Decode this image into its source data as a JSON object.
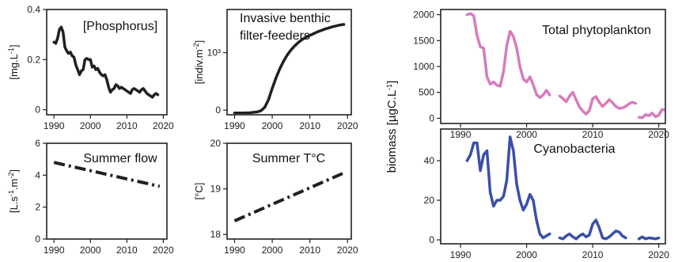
{
  "chart_data": [
    {
      "id": "phosphorus",
      "type": "line",
      "title": "[Phosphorus]",
      "ylabel": "[mg.L-1]",
      "color": "#231f20",
      "xlim": [
        1988,
        2021
      ],
      "ylim": [
        -0.02,
        0.4
      ],
      "xticks": [
        1990,
        2000,
        2010,
        2020
      ],
      "yticks": [
        0,
        0.2,
        0.4
      ],
      "ytick_labels": [
        "0",
        "0.2",
        "0.4"
      ],
      "series": [
        {
          "segments": [
            [
              [
                1990.0,
                0.27
              ],
              [
                1990.5,
                0.265
              ],
              [
                1991.0,
                0.285
              ],
              [
                1991.5,
                0.32
              ],
              [
                1992.0,
                0.33
              ],
              [
                1992.5,
                0.31
              ],
              [
                1993.0,
                0.25
              ],
              [
                1993.5,
                0.235
              ],
              [
                1994.0,
                0.225
              ],
              [
                1994.5,
                0.23
              ],
              [
                1995.0,
                0.215
              ],
              [
                1995.5,
                0.21
              ],
              [
                1996.0,
                0.18
              ],
              [
                1996.5,
                0.16
              ],
              [
                1997.0,
                0.14
              ],
              [
                1997.5,
                0.155
              ],
              [
                1998.0,
                0.16
              ],
              [
                1998.5,
                0.2
              ],
              [
                1999.0,
                0.205
              ],
              [
                1999.5,
                0.2
              ],
              [
                2000.0,
                0.2
              ],
              [
                2000.5,
                0.17
              ],
              [
                2001.0,
                0.175
              ],
              [
                2001.5,
                0.16
              ],
              [
                2002.0,
                0.165
              ],
              [
                2002.5,
                0.15
              ],
              [
                2003.0,
                0.14
              ],
              [
                2003.5,
                0.135
              ],
              [
                2004.0,
                0.14
              ],
              [
                2004.5,
                0.12
              ],
              [
                2005.0,
                0.09
              ],
              [
                2005.5,
                0.07
              ],
              [
                2006.0,
                0.08
              ],
              [
                2006.5,
                0.085
              ],
              [
                2007.0,
                0.1
              ],
              [
                2007.5,
                0.095
              ],
              [
                2008.0,
                0.085
              ],
              [
                2008.5,
                0.09
              ],
              [
                2009.0,
                0.085
              ],
              [
                2009.5,
                0.08
              ],
              [
                2010.0,
                0.075
              ],
              [
                2010.5,
                0.07
              ],
              [
                2011.0,
                0.065
              ],
              [
                2011.5,
                0.08
              ],
              [
                2012.0,
                0.085
              ],
              [
                2012.5,
                0.08
              ],
              [
                2013.0,
                0.075
              ],
              [
                2013.5,
                0.07
              ],
              [
                2014.0,
                0.08
              ],
              [
                2014.5,
                0.085
              ],
              [
                2015.0,
                0.075
              ],
              [
                2015.5,
                0.065
              ],
              [
                2016.0,
                0.06
              ],
              [
                2016.5,
                0.055
              ],
              [
                2017.0,
                0.05
              ],
              [
                2017.5,
                0.06
              ],
              [
                2018.0,
                0.065
              ],
              [
                2018.5,
                0.06
              ]
            ]
          ]
        }
      ]
    },
    {
      "id": "filter-feeders",
      "type": "line",
      "title": [
        "Invasive benthic",
        "filter-feeders"
      ],
      "ylabel": "[indiv.m-2]",
      "color": "#231f20",
      "xlim": [
        1988,
        2021
      ],
      "ylim": [
        -80,
        1750
      ],
      "xticks": [
        1990,
        2000,
        2010,
        2020
      ],
      "yticks": [
        0,
        1000
      ],
      "ytick_labels": [
        "0",
        "10³"
      ],
      "series": [
        {
          "segments": [
            [
              [
                1990,
                -50
              ],
              [
                1992,
                -50
              ],
              [
                1994,
                -45
              ],
              [
                1996,
                -30
              ],
              [
                1997,
                -10
              ],
              [
                1998,
                50
              ],
              [
                1999,
                180
              ],
              [
                2000,
                380
              ],
              [
                2001,
                560
              ],
              [
                2002,
                720
              ],
              [
                2003,
                850
              ],
              [
                2004,
                960
              ],
              [
                2005,
                1050
              ],
              [
                2006,
                1120
              ],
              [
                2007,
                1180
              ],
              [
                2008,
                1230
              ],
              [
                2009,
                1270
              ],
              [
                2010,
                1300
              ],
              [
                2011,
                1330
              ],
              [
                2012,
                1360
              ],
              [
                2013,
                1385
              ],
              [
                2014,
                1410
              ],
              [
                2015,
                1430
              ],
              [
                2016,
                1450
              ],
              [
                2017,
                1465
              ],
              [
                2018,
                1480
              ],
              [
                2019,
                1490
              ]
            ]
          ]
        }
      ]
    },
    {
      "id": "summer-flow",
      "type": "line",
      "title": "Summer flow",
      "ylabel": "[L.s-1.m-2]",
      "color": "#231f20",
      "dashed": true,
      "xlim": [
        1988,
        2021
      ],
      "ylim": [
        0,
        6
      ],
      "xticks": [
        1990,
        2000,
        2010,
        2020
      ],
      "yticks": [
        0,
        2,
        4,
        6
      ],
      "ytick_labels": [
        "0",
        "2",
        "4",
        "6"
      ],
      "series": [
        {
          "segments": [
            [
              [
                1990,
                4.8
              ],
              [
                2019,
                3.3
              ]
            ]
          ]
        }
      ]
    },
    {
      "id": "summer-temperature",
      "type": "line",
      "title": "Summer T°C",
      "ylabel": "[°C]",
      "color": "#231f20",
      "dashed": true,
      "xlim": [
        1988,
        2021
      ],
      "ylim": [
        17.9,
        20
      ],
      "xticks": [
        1990,
        2000,
        2010,
        2020
      ],
      "yticks": [
        18,
        19,
        20
      ],
      "ytick_labels": [
        "18",
        "19",
        "20"
      ],
      "series": [
        {
          "segments": [
            [
              [
                1990,
                18.3
              ],
              [
                2019,
                19.35
              ]
            ]
          ]
        }
      ]
    },
    {
      "id": "total-phytoplankton",
      "type": "line",
      "title": "Total phytoplankton",
      "ylabel": "",
      "color": "#d87bbd",
      "xlim": [
        1987,
        2021
      ],
      "ylim": [
        -100,
        2100
      ],
      "xticks": [
        1990,
        2000,
        2010,
        2020
      ],
      "yticks": [
        0,
        500,
        1000,
        1500,
        2000
      ],
      "ytick_labels": [
        "0",
        "500",
        "1000",
        "1500",
        "2000"
      ],
      "series": [
        {
          "segments": [
            [
              [
                1991.0,
                2000
              ],
              [
                1991.5,
                2020
              ],
              [
                1992.0,
                1980
              ],
              [
                1992.5,
                1600
              ],
              [
                1993.0,
                1380
              ],
              [
                1993.5,
                1350
              ],
              [
                1994.0,
                800
              ],
              [
                1994.5,
                660
              ],
              [
                1995.0,
                700
              ],
              [
                1995.5,
                640
              ],
              [
                1996.0,
                620
              ],
              [
                1996.5,
                900
              ],
              [
                1997.0,
                1400
              ],
              [
                1997.5,
                1680
              ],
              [
                1998.0,
                1580
              ],
              [
                1998.5,
                1350
              ],
              [
                1999.0,
                1000
              ],
              [
                1999.5,
                760
              ],
              [
                2000.0,
                700
              ],
              [
                2000.5,
                800
              ],
              [
                2001.0,
                650
              ],
              [
                2001.5,
                460
              ],
              [
                2002.0,
                400
              ],
              [
                2002.5,
                450
              ],
              [
                2003.0,
                540
              ],
              [
                2003.5,
                450
              ]
            ],
            [
              [
                2005.0,
                430
              ],
              [
                2005.5,
                380
              ],
              [
                2006.0,
                320
              ],
              [
                2006.5,
                430
              ],
              [
                2007.0,
                500
              ],
              [
                2007.5,
                360
              ],
              [
                2008.0,
                220
              ],
              [
                2008.5,
                140
              ],
              [
                2009.0,
                80
              ],
              [
                2009.5,
                150
              ],
              [
                2010.0,
                380
              ],
              [
                2010.5,
                420
              ],
              [
                2011.0,
                310
              ],
              [
                2011.5,
                230
              ],
              [
                2012.0,
                290
              ],
              [
                2012.5,
                360
              ],
              [
                2013.0,
                300
              ],
              [
                2013.5,
                230
              ],
              [
                2014.0,
                190
              ],
              [
                2014.5,
                200
              ],
              [
                2015.0,
                230
              ],
              [
                2015.5,
                280
              ],
              [
                2016.0,
                310
              ],
              [
                2016.5,
                290
              ]
            ],
            [
              [
                2017.0,
                20
              ],
              [
                2017.5,
                10
              ],
              [
                2018.0,
                70
              ],
              [
                2018.5,
                50
              ],
              [
                2019.0,
                100
              ],
              [
                2019.5,
                30
              ],
              [
                2020.0,
                60
              ],
              [
                2020.5,
                170
              ],
              [
                2021.0,
                160
              ],
              [
                2021.5,
                30
              ],
              [
                2022.0,
                10
              ]
            ]
          ]
        }
      ]
    },
    {
      "id": "cyanobacteria",
      "type": "line",
      "title": "Cyanobacteria",
      "ylabel": "",
      "color": "#3a4fa8",
      "xlim": [
        1987,
        2021
      ],
      "ylim": [
        -2,
        56
      ],
      "xticks": [
        1990,
        2000,
        2010,
        2020
      ],
      "yticks": [
        0,
        20,
        40
      ],
      "ytick_labels": [
        "0",
        "20",
        "40"
      ],
      "series": [
        {
          "segments": [
            [
              [
                1991.0,
                40
              ],
              [
                1991.5,
                43
              ],
              [
                1992.0,
                49
              ],
              [
                1992.5,
                49
              ],
              [
                1993.0,
                35
              ],
              [
                1993.5,
                43
              ],
              [
                1994.0,
                45
              ],
              [
                1994.5,
                24
              ],
              [
                1995.0,
                17
              ],
              [
                1995.5,
                20
              ],
              [
                1996.0,
                20
              ],
              [
                1996.5,
                22
              ],
              [
                1997.0,
                30
              ],
              [
                1997.5,
                52
              ],
              [
                1998.0,
                45
              ],
              [
                1998.5,
                28
              ],
              [
                1999.0,
                20
              ],
              [
                1999.5,
                15
              ],
              [
                2000.0,
                18
              ],
              [
                2000.5,
                23
              ],
              [
                2001.0,
                20
              ],
              [
                2001.5,
                10
              ],
              [
                2002.0,
                3
              ],
              [
                2002.5,
                1
              ],
              [
                2003.0,
                2
              ],
              [
                2003.5,
                3
              ]
            ],
            [
              [
                2005.0,
                1
              ],
              [
                2005.5,
                0.5
              ],
              [
                2006.0,
                2
              ],
              [
                2006.5,
                3
              ],
              [
                2007.0,
                1.5
              ],
              [
                2007.5,
                0.5
              ],
              [
                2008.0,
                2
              ],
              [
                2008.5,
                3
              ],
              [
                2009.0,
                1.5
              ],
              [
                2009.5,
                2.5
              ],
              [
                2010.0,
                8
              ],
              [
                2010.5,
                10
              ],
              [
                2011.0,
                6
              ],
              [
                2011.5,
                1
              ],
              [
                2012.0,
                0.5
              ],
              [
                2012.5,
                1.5
              ],
              [
                2013.0,
                3
              ],
              [
                2013.5,
                4.5
              ],
              [
                2014.0,
                4
              ],
              [
                2014.5,
                2
              ],
              [
                2015.0,
                1
              ]
            ],
            [
              [
                2017.0,
                0.5
              ],
              [
                2017.5,
                1.5
              ],
              [
                2018.0,
                0.5
              ],
              [
                2018.5,
                1
              ],
              [
                2019.0,
                0.8
              ],
              [
                2019.5,
                0.5
              ],
              [
                2020.0,
                1
              ]
            ]
          ]
        }
      ]
    }
  ],
  "shared_ylabel": "biomass [µgC.L-1]"
}
